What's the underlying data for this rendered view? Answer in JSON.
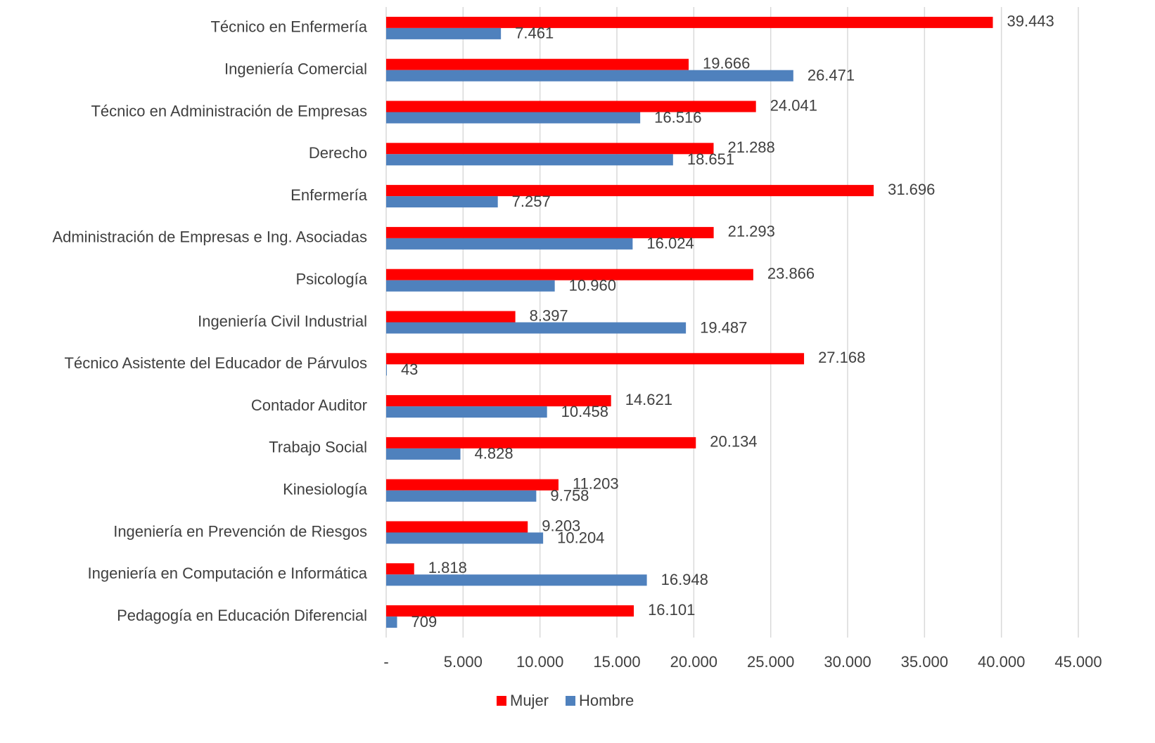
{
  "chart_data": {
    "type": "bar",
    "orientation": "horizontal",
    "categories": [
      "Técnico en Enfermería",
      "Ingeniería Comercial",
      "Técnico en Administración de Empresas",
      "Derecho",
      "Enfermería",
      "Administración de Empresas e Ing. Asociadas",
      "Psicología",
      "Ingeniería Civil Industrial",
      "Técnico Asistente del Educador de Párvulos",
      "Contador Auditor",
      "Trabajo Social",
      "Kinesiología",
      "Ingeniería en Prevención de Riesgos",
      "Ingeniería en Computación e Informática",
      "Pedagogía en Educación Diferencial"
    ],
    "series": [
      {
        "name": "Mujer",
        "color": "#ff0000",
        "values": [
          39443,
          19666,
          24041,
          21288,
          31696,
          21293,
          23866,
          8397,
          27168,
          14621,
          20134,
          11203,
          9203,
          1818,
          16101
        ],
        "value_labels": [
          "39.443",
          "19.666",
          "24.041",
          "21.288",
          "31.696",
          "21.293",
          "23.866",
          "8.397",
          "27.168",
          "14.621",
          "20.134",
          "11.203",
          "9.203",
          "1.818",
          "16.101"
        ]
      },
      {
        "name": "Hombre",
        "color": "#4f81bd",
        "values": [
          7461,
          26471,
          16516,
          18651,
          7257,
          16024,
          10960,
          19487,
          43,
          10458,
          4828,
          9758,
          10204,
          16948,
          709
        ],
        "value_labels": [
          "7.461",
          "26.471",
          "16.516",
          "18.651",
          "7.257",
          "16.024",
          "10.960",
          "19.487",
          "43",
          "10.458",
          "4.828",
          "9.758",
          "10.204",
          "16.948",
          "709"
        ]
      }
    ],
    "xlim": [
      0,
      45000
    ],
    "xticks": [
      {
        "value": 0,
        "label": "-"
      },
      {
        "value": 5000,
        "label": "5.000"
      },
      {
        "value": 10000,
        "label": "10.000"
      },
      {
        "value": 15000,
        "label": "15.000"
      },
      {
        "value": 20000,
        "label": "20.000"
      },
      {
        "value": 25000,
        "label": "25.000"
      },
      {
        "value": 30000,
        "label": "30.000"
      },
      {
        "value": 35000,
        "label": "35.000"
      },
      {
        "value": 40000,
        "label": "40.000"
      },
      {
        "value": 45000,
        "label": "45.000"
      }
    ],
    "grid": true,
    "legend": "bottom"
  }
}
